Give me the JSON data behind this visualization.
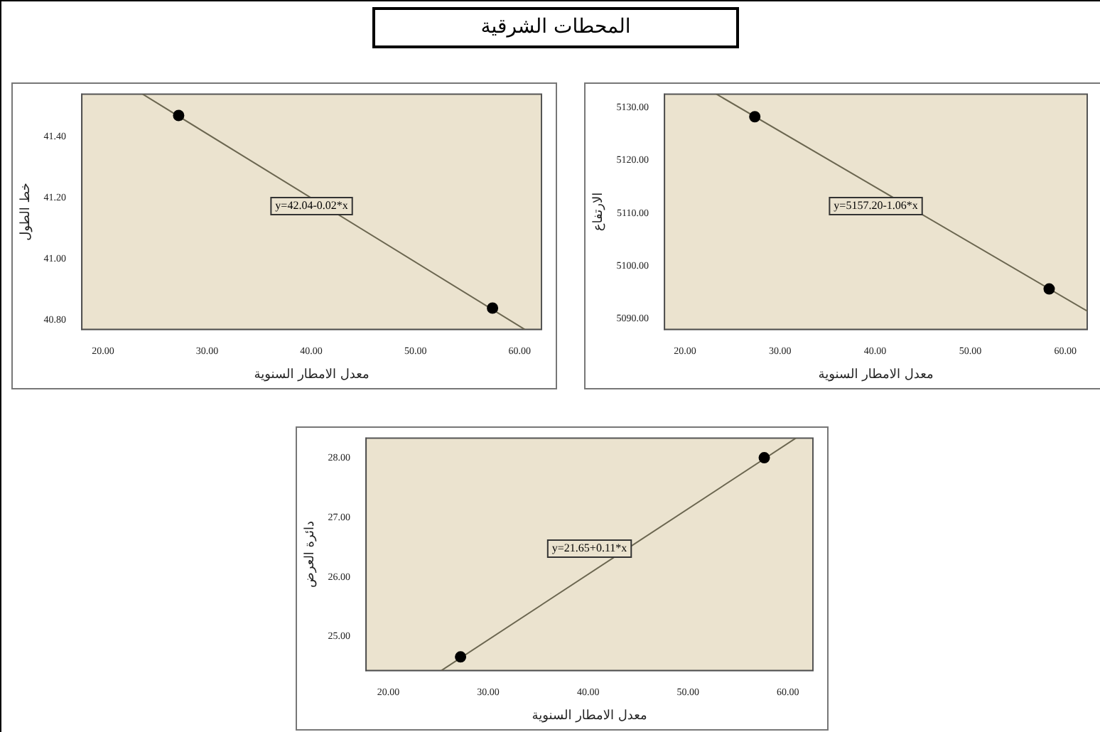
{
  "chart_data": [
    {
      "type": "scatter",
      "title": "المحطات الشرقية",
      "xlabel": "معدل الامطار السنوية",
      "ylabel": "خط الطول",
      "xlim": [
        17.96,
        62.1
      ],
      "ylim": [
        40.77,
        41.54
      ],
      "xticks": [
        {
          "value": 20,
          "label": "20.00"
        },
        {
          "value": 30,
          "label": "30.00"
        },
        {
          "value": 40,
          "label": "40.00"
        },
        {
          "value": 50,
          "label": "50.00"
        },
        {
          "value": 60,
          "label": "60.00"
        }
      ],
      "yticks": [
        {
          "value": 40.8,
          "label": "40.80"
        },
        {
          "value": 41,
          "label": "41.00"
        },
        {
          "value": 41.2,
          "label": "41.20"
        },
        {
          "value": 41.4,
          "label": "41.40"
        }
      ],
      "grid": false,
      "legend": false,
      "series": [
        {
          "type": "scatter",
          "color": "#000000",
          "marker": "circle",
          "x": [
            27.26,
            57.4
          ],
          "values": [
            41.47,
            40.84
          ]
        },
        {
          "type": "line",
          "color": "#6b6650",
          "marker": "none",
          "line_style": "solid",
          "x": [
            23.8,
            60.5
          ],
          "values": [
            41.54,
            40.77
          ]
        }
      ],
      "annotations": [
        "y=42.04-0.02*x"
      ]
    },
    {
      "type": "scatter",
      "xlabel": "معدل الامطار السنوية",
      "ylabel": "الارتفاع",
      "xlim": [
        17.84,
        62.3
      ],
      "ylim": [
        5087.9,
        5132.6
      ],
      "xticks": [
        {
          "value": 20,
          "label": "20.00"
        },
        {
          "value": 30,
          "label": "30.00"
        },
        {
          "value": 40,
          "label": "40.00"
        },
        {
          "value": 50,
          "label": "50.00"
        },
        {
          "value": 60,
          "label": "60.00"
        }
      ],
      "yticks": [
        {
          "value": 5090,
          "label": "5090.00"
        },
        {
          "value": 5100,
          "label": "5100.00"
        },
        {
          "value": 5110,
          "label": "5110.00"
        },
        {
          "value": 5120,
          "label": "5120.00"
        },
        {
          "value": 5130,
          "label": "5130.00"
        }
      ],
      "grid": false,
      "legend": false,
      "series": [
        {
          "type": "scatter",
          "color": "#000000",
          "marker": "circle",
          "x": [
            27.34,
            58.3
          ],
          "values": [
            5128.3,
            5095.6
          ]
        },
        {
          "type": "line",
          "color": "#6b6650",
          "marker": "none",
          "line_style": "solid",
          "x": [
            23.3,
            62.3
          ],
          "values": [
            5132.6,
            5091.4
          ]
        }
      ],
      "annotations": [
        "y=5157.20-1.06*x"
      ]
    },
    {
      "type": "scatter",
      "xlabel": "معدل الامطار السنوية",
      "ylabel": "دائرة العرض",
      "xlim": [
        17.77,
        62.5
      ],
      "ylim": [
        24.43,
        28.33
      ],
      "xticks": [
        {
          "value": 20,
          "label": "20.00"
        },
        {
          "value": 30,
          "label": "30.00"
        },
        {
          "value": 40,
          "label": "40.00"
        },
        {
          "value": 50,
          "label": "50.00"
        },
        {
          "value": 60,
          "label": "60.00"
        }
      ],
      "yticks": [
        {
          "value": 25,
          "label": "25.00"
        },
        {
          "value": 26,
          "label": "26.00"
        },
        {
          "value": 27,
          "label": "27.00"
        },
        {
          "value": 28,
          "label": "28.00"
        }
      ],
      "grid": false,
      "legend": false,
      "series": [
        {
          "type": "scatter",
          "color": "#000000",
          "marker": "circle",
          "x": [
            27.23,
            57.63
          ],
          "values": [
            24.66,
            28.0
          ]
        },
        {
          "type": "line",
          "color": "#6b6650",
          "marker": "none",
          "line_style": "solid",
          "x": [
            25.3,
            60.8
          ],
          "values": [
            24.43,
            28.33
          ]
        }
      ],
      "annotations": [
        "y=21.65+0.11*x"
      ]
    }
  ]
}
